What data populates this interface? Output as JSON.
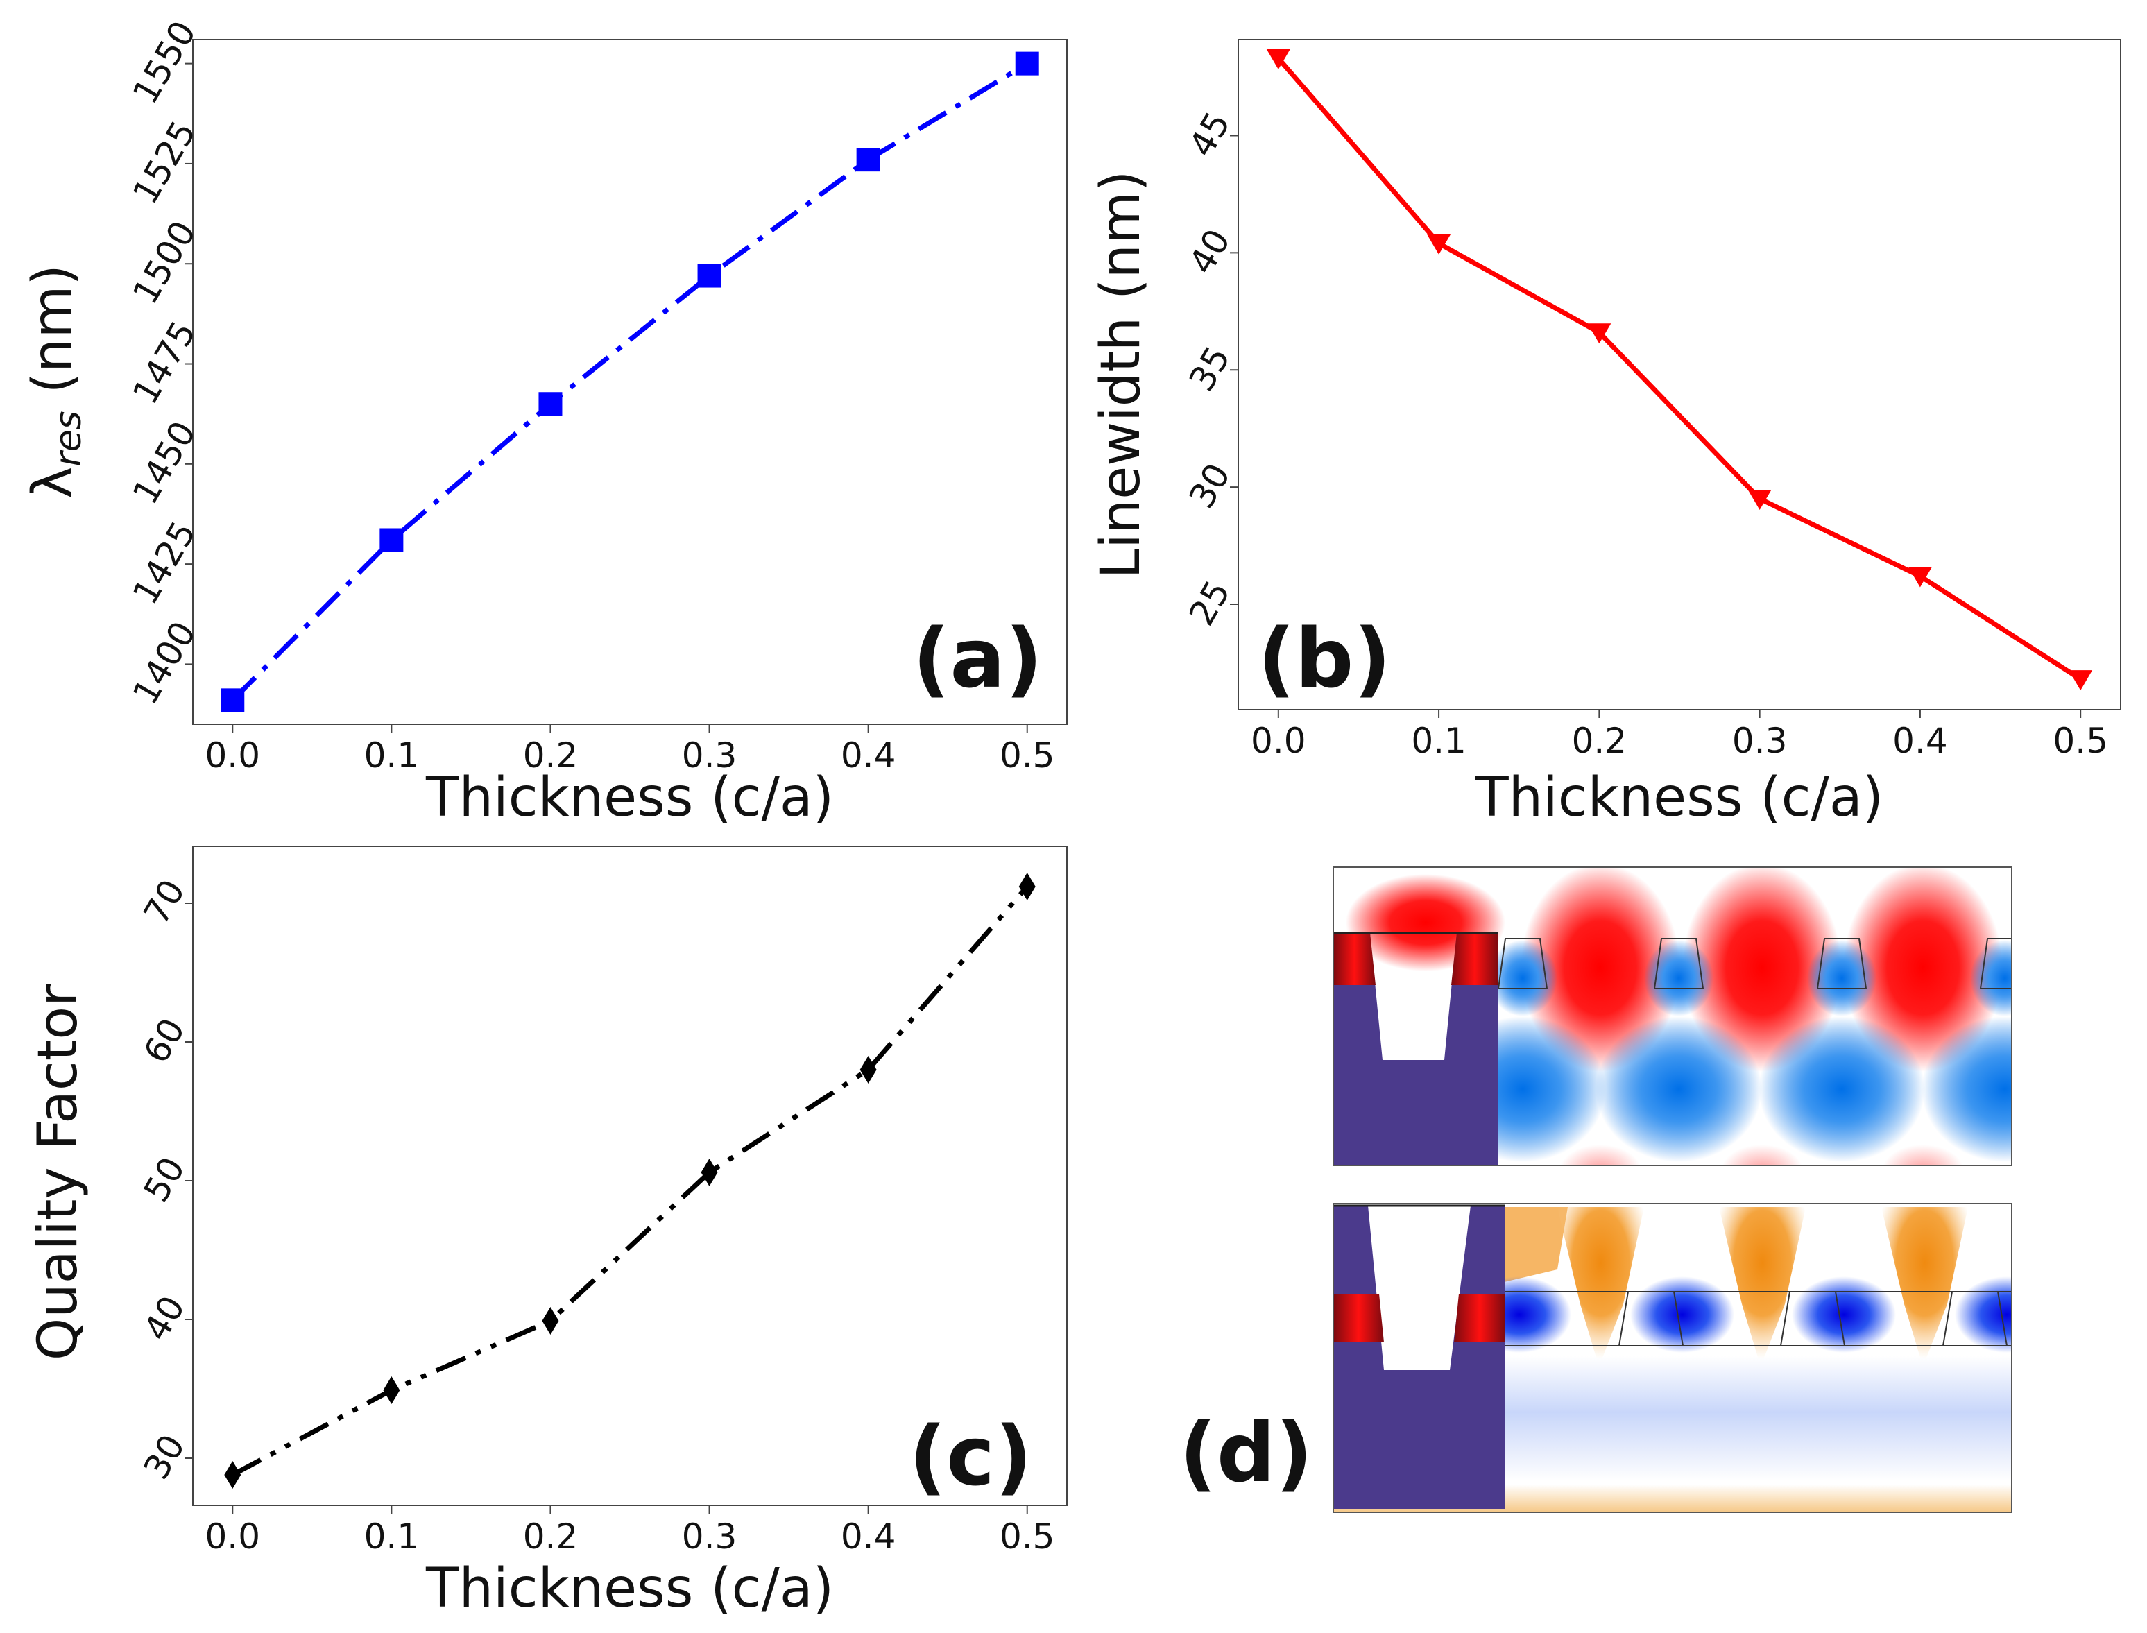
{
  "figure": {
    "panels": [
      "a",
      "b",
      "c",
      "d"
    ]
  },
  "chart_data": [
    {
      "id": "a",
      "type": "line",
      "label": "(a)",
      "xlabel": "Thickness (c/a)",
      "ylabel_main": "λ",
      "ylabel_sub": "res",
      "ylabel_unit": " (nm)",
      "x": [
        0.0,
        0.1,
        0.2,
        0.3,
        0.4,
        0.5
      ],
      "series": [
        {
          "name": "resonance wavelength",
          "values": [
            1391,
            1431,
            1465,
            1497,
            1526,
            1550
          ],
          "color": "#0000ff",
          "marker": "square",
          "line_style": "dashdot"
        }
      ],
      "xlim": [
        -0.025,
        0.525
      ],
      "ylim": [
        1385,
        1556
      ],
      "xticks": [
        "0.0",
        "0.1",
        "0.2",
        "0.3",
        "0.4",
        "0.5"
      ],
      "yticks": [
        "1400",
        "1425",
        "1450",
        "1475",
        "1500",
        "1525",
        "1550"
      ],
      "ytick_values": [
        1400,
        1425,
        1450,
        1475,
        1500,
        1525,
        1550
      ]
    },
    {
      "id": "b",
      "type": "line",
      "label": "(b)",
      "xlabel": "Thickness (c/a)",
      "ylabel": "Linewidth (nm)",
      "x": [
        0.0,
        0.1,
        0.2,
        0.3,
        0.4,
        0.5
      ],
      "series": [
        {
          "name": "linewidth",
          "values": [
            48.3,
            40.4,
            36.6,
            29.5,
            26.2,
            21.8
          ],
          "color": "#ff0000",
          "marker": "triangle-down",
          "line_style": "solid"
        }
      ],
      "xlim": [
        -0.025,
        0.525
      ],
      "ylim": [
        20.5,
        49.1
      ],
      "xticks": [
        "0.0",
        "0.1",
        "0.2",
        "0.3",
        "0.4",
        "0.5"
      ],
      "yticks": [
        "25",
        "30",
        "35",
        "40",
        "45"
      ],
      "ytick_values": [
        25,
        30,
        35,
        40,
        45
      ]
    },
    {
      "id": "c",
      "type": "line",
      "label": "(c)",
      "xlabel": "Thickness (c/a)",
      "ylabel": "Quality Factor",
      "x": [
        0.0,
        0.1,
        0.2,
        0.3,
        0.4,
        0.5
      ],
      "series": [
        {
          "name": "quality factor",
          "values": [
            28.8,
            34.9,
            39.9,
            50.6,
            58.0,
            71.2
          ],
          "color": "#000000",
          "marker": "diamond",
          "line_style": "dashdot"
        }
      ],
      "xlim": [
        -0.025,
        0.525
      ],
      "ylim": [
        26.6,
        74.1
      ],
      "xticks": [
        "0.0",
        "0.1",
        "0.2",
        "0.3",
        "0.4",
        "0.5"
      ],
      "yticks": [
        "30",
        "40",
        "50",
        "60",
        "70"
      ],
      "ytick_values": [
        30,
        40,
        50,
        60,
        70
      ]
    }
  ],
  "field_maps": {
    "label": "(d)",
    "structure_color": "#4b3a8c",
    "positive_color": "#ff0000",
    "negative_color": "#0066ff",
    "top_map": {
      "name": "upper field map",
      "positive": "red",
      "negative": "blue"
    },
    "bottom_map": {
      "name": "lower field map",
      "positive": "orange",
      "negative": "blue"
    }
  }
}
